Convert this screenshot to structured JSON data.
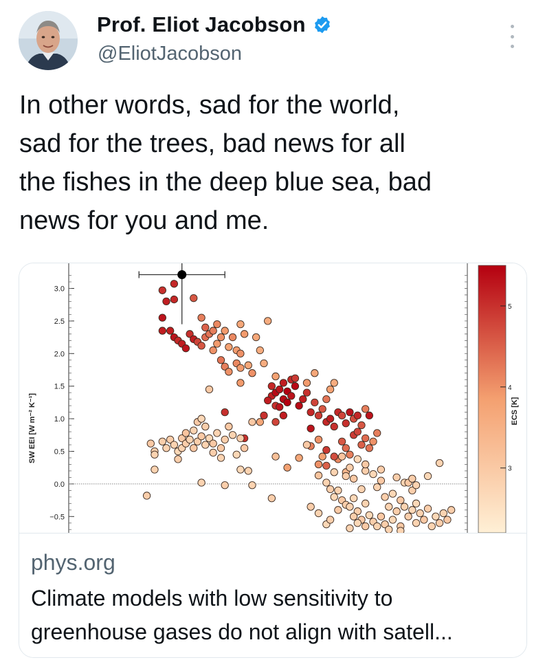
{
  "author": {
    "name": "Prof. Eliot Jacobson",
    "handle": "@EliotJacobson",
    "verified": true
  },
  "tweet": {
    "text": "In other words, sad for the world,\nsad for the trees, bad news for all\nthe fishes in the deep blue sea, bad\nnews for you and me."
  },
  "icons": {
    "verified_badge": "verified-badge-icon",
    "more": "more-options-icon"
  },
  "link_card": {
    "domain": "phys.org",
    "title": "Climate models with low sensitivity to\ngreenhouse gases do not align with satell..."
  },
  "chart_data": {
    "type": "scatter",
    "ylabel": "SW EEI [W m⁻² K⁻¹]",
    "y_ticks": [
      "3.0",
      "2.5",
      "2.0",
      "1.5",
      "1.0",
      "0.5",
      "0.0",
      "−0.5"
    ],
    "ylim": [
      -0.75,
      3.3
    ],
    "colorbar": {
      "label": "ECS [K]",
      "ticks": [
        "5",
        "4",
        "3"
      ],
      "range": [
        2.2,
        5.5
      ],
      "colors": [
        "#fff0d6",
        "#f4a070",
        "#b40010"
      ]
    },
    "reference_line_y": 0.0,
    "observation": {
      "x": 0.29,
      "y": 3.21,
      "xerr": 0.11,
      "ylow": 2.45
    },
    "points": [
      [
        0.27,
        3.07,
        5.1
      ],
      [
        0.24,
        2.97,
        5.0
      ],
      [
        0.25,
        2.8,
        5.2
      ],
      [
        0.27,
        2.83,
        5.1
      ],
      [
        0.24,
        2.55,
        5.3
      ],
      [
        0.24,
        2.35,
        5.2
      ],
      [
        0.32,
        2.85,
        4.6
      ],
      [
        0.26,
        2.35,
        5.2
      ],
      [
        0.27,
        2.25,
        5.3
      ],
      [
        0.28,
        2.2,
        5.1
      ],
      [
        0.29,
        2.15,
        5.2
      ],
      [
        0.3,
        2.08,
        5.3
      ],
      [
        0.31,
        2.3,
        5.0
      ],
      [
        0.32,
        2.22,
        5.2
      ],
      [
        0.33,
        2.18,
        4.8
      ],
      [
        0.34,
        2.12,
        4.6
      ],
      [
        0.35,
        2.25,
        4.4
      ],
      [
        0.36,
        2.3,
        4.3
      ],
      [
        0.37,
        2.35,
        4.2
      ],
      [
        0.38,
        2.45,
        4.1
      ],
      [
        0.35,
        2.4,
        4.5
      ],
      [
        0.34,
        2.55,
        4.2
      ],
      [
        0.37,
        2.05,
        4.0
      ],
      [
        0.38,
        2.15,
        3.9
      ],
      [
        0.39,
        2.25,
        4.0
      ],
      [
        0.4,
        2.35,
        3.9
      ],
      [
        0.41,
        2.1,
        3.8
      ],
      [
        0.42,
        2.25,
        4.1
      ],
      [
        0.43,
        2.05,
        3.9
      ],
      [
        0.44,
        2.0,
        4.0
      ],
      [
        0.45,
        2.3,
        3.9
      ],
      [
        0.39,
        1.9,
        4.3
      ],
      [
        0.4,
        1.8,
        4.2
      ],
      [
        0.41,
        1.72,
        4.0
      ],
      [
        0.43,
        1.85,
        4.1
      ],
      [
        0.44,
        1.78,
        3.9
      ],
      [
        0.46,
        1.82,
        3.7
      ],
      [
        0.44,
        2.45,
        3.7
      ],
      [
        0.48,
        2.25,
        3.7
      ],
      [
        0.49,
        2.05,
        3.6
      ],
      [
        0.51,
        2.5,
        3.6
      ],
      [
        0.53,
        1.65,
        3.8
      ],
      [
        0.44,
        1.55,
        3.9
      ],
      [
        0.47,
        1.7,
        4.0
      ],
      [
        0.5,
        1.85,
        3.6
      ],
      [
        0.52,
        1.35,
        5.2
      ],
      [
        0.53,
        1.4,
        5.4
      ],
      [
        0.54,
        1.45,
        5.3
      ],
      [
        0.55,
        1.3,
        5.4
      ],
      [
        0.56,
        1.42,
        5.5
      ],
      [
        0.57,
        1.35,
        5.3
      ],
      [
        0.58,
        1.5,
        5.4
      ],
      [
        0.56,
        1.25,
        5.5
      ],
      [
        0.55,
        1.55,
        5.2
      ],
      [
        0.57,
        1.6,
        5.1
      ],
      [
        0.53,
        1.2,
        5.0
      ],
      [
        0.54,
        1.18,
        5.3
      ],
      [
        0.59,
        1.2,
        5.4
      ],
      [
        0.6,
        1.3,
        5.2
      ],
      [
        0.61,
        1.4,
        5.0
      ],
      [
        0.58,
        1.62,
        4.9
      ],
      [
        0.52,
        1.5,
        5.1
      ],
      [
        0.51,
        1.28,
        5.2
      ],
      [
        0.5,
        1.05,
        5.0
      ],
      [
        0.53,
        0.95,
        4.8
      ],
      [
        0.55,
        1.05,
        5.2
      ],
      [
        0.62,
        1.1,
        5.1
      ],
      [
        0.63,
        1.25,
        4.8
      ],
      [
        0.64,
        1.05,
        4.9
      ],
      [
        0.65,
        1.15,
        4.6
      ],
      [
        0.66,
        1.3,
        4.3
      ],
      [
        0.67,
        1.45,
        3.8
      ],
      [
        0.68,
        1.55,
        3.6
      ],
      [
        0.61,
        1.55,
        3.9
      ],
      [
        0.63,
        1.7,
        3.7
      ],
      [
        0.66,
        0.95,
        5.1
      ],
      [
        0.67,
        1.0,
        5.2
      ],
      [
        0.68,
        0.88,
        5.0
      ],
      [
        0.69,
        1.1,
        5.1
      ],
      [
        0.7,
        1.05,
        4.8
      ],
      [
        0.71,
        0.93,
        5.0
      ],
      [
        0.72,
        1.1,
        5.3
      ],
      [
        0.73,
        1.0,
        4.7
      ],
      [
        0.74,
        1.05,
        5.1
      ],
      [
        0.75,
        0.9,
        4.6
      ],
      [
        0.76,
        1.15,
        4.2
      ],
      [
        0.77,
        1.05,
        5.3
      ],
      [
        0.73,
        0.75,
        4.9
      ],
      [
        0.74,
        0.8,
        4.8
      ],
      [
        0.75,
        0.6,
        4.5
      ],
      [
        0.76,
        0.7,
        4.4
      ],
      [
        0.77,
        0.55,
        4.3
      ],
      [
        0.78,
        0.65,
        4.0
      ],
      [
        0.79,
        0.78,
        4.2
      ],
      [
        0.7,
        0.65,
        4.6
      ],
      [
        0.71,
        0.55,
        4.4
      ],
      [
        0.72,
        0.45,
        4.2
      ],
      [
        0.69,
        0.38,
        4.1
      ],
      [
        0.64,
        0.3,
        4.0
      ],
      [
        0.65,
        0.42,
        3.8
      ],
      [
        0.62,
        0.58,
        4.2
      ],
      [
        0.64,
        0.68,
        4.0
      ],
      [
        0.66,
        0.28,
        4.5
      ],
      [
        0.66,
        0.52,
        4.9
      ],
      [
        0.68,
        0.42,
        4.7
      ],
      [
        0.71,
        0.18,
        3.4
      ],
      [
        0.59,
        0.4,
        3.7
      ],
      [
        0.56,
        0.25,
        3.8
      ],
      [
        0.53,
        0.42,
        3.2
      ],
      [
        0.49,
        0.95,
        3.7
      ],
      [
        0.45,
        0.7,
        5.0
      ],
      [
        0.4,
        1.1,
        5.0
      ],
      [
        0.62,
        0.85,
        5.3
      ],
      [
        0.21,
        0.62,
        3.0
      ],
      [
        0.22,
        0.5,
        2.9
      ],
      [
        0.22,
        0.45,
        2.8
      ],
      [
        0.24,
        0.65,
        2.9
      ],
      [
        0.25,
        0.55,
        2.8
      ],
      [
        0.26,
        0.68,
        2.9
      ],
      [
        0.27,
        0.6,
        2.8
      ],
      [
        0.28,
        0.5,
        2.7
      ],
      [
        0.28,
        0.38,
        2.9
      ],
      [
        0.29,
        0.55,
        2.8
      ],
      [
        0.29,
        0.7,
        3.0
      ],
      [
        0.3,
        0.62,
        2.9
      ],
      [
        0.3,
        0.78,
        3.1
      ],
      [
        0.31,
        0.68,
        2.8
      ],
      [
        0.32,
        0.55,
        3.0
      ],
      [
        0.33,
        0.65,
        2.9
      ],
      [
        0.34,
        0.73,
        3.0
      ],
      [
        0.35,
        0.6,
        2.8
      ],
      [
        0.36,
        0.7,
        2.7
      ],
      [
        0.37,
        0.62,
        3.0
      ],
      [
        0.37,
        0.48,
        2.9
      ],
      [
        0.38,
        0.78,
        2.8
      ],
      [
        0.39,
        0.55,
        3.0
      ],
      [
        0.39,
        0.4,
        2.8
      ],
      [
        0.4,
        0.68,
        2.9
      ],
      [
        0.41,
        0.88,
        3.0
      ],
      [
        0.42,
        0.75,
        2.8
      ],
      [
        0.43,
        0.45,
        2.7
      ],
      [
        0.44,
        0.7,
        2.9
      ],
      [
        0.45,
        0.55,
        3.0
      ],
      [
        0.46,
        0.2,
        2.8
      ],
      [
        0.47,
        0.95,
        3.0
      ],
      [
        0.33,
        0.95,
        3.0
      ],
      [
        0.32,
        0.82,
        2.8
      ],
      [
        0.35,
        0.88,
        2.9
      ],
      [
        0.34,
        1.0,
        2.7
      ],
      [
        0.36,
        1.45,
        3.0
      ],
      [
        0.22,
        0.22,
        2.8
      ],
      [
        0.2,
        -0.18,
        2.9
      ],
      [
        0.34,
        0.02,
        2.8
      ],
      [
        0.4,
        -0.02,
        2.9
      ],
      [
        0.44,
        0.22,
        2.7
      ],
      [
        0.47,
        -0.02,
        2.8
      ],
      [
        0.52,
        -0.22,
        2.9
      ],
      [
        0.61,
        0.6,
        3.0
      ],
      [
        0.64,
        0.13,
        3.1
      ],
      [
        0.66,
        0.02,
        2.8
      ],
      [
        0.67,
        -0.08,
        2.9
      ],
      [
        0.68,
        -0.2,
        2.7
      ],
      [
        0.69,
        -0.1,
        2.8
      ],
      [
        0.7,
        -0.25,
        3.0
      ],
      [
        0.71,
        -0.32,
        2.9
      ],
      [
        0.72,
        -0.35,
        2.8
      ],
      [
        0.73,
        -0.22,
        2.7
      ],
      [
        0.74,
        -0.42,
        2.9
      ],
      [
        0.75,
        -0.55,
        3.0
      ],
      [
        0.76,
        -0.3,
        2.8
      ],
      [
        0.77,
        -0.48,
        2.7
      ],
      [
        0.78,
        -0.58,
        2.9
      ],
      [
        0.79,
        -0.65,
        2.8
      ],
      [
        0.8,
        -0.5,
        3.0
      ],
      [
        0.81,
        -0.62,
        2.9
      ],
      [
        0.82,
        -0.7,
        2.8
      ],
      [
        0.83,
        -0.55,
        2.7
      ],
      [
        0.84,
        -0.42,
        2.9
      ],
      [
        0.85,
        -0.65,
        3.0
      ],
      [
        0.86,
        -0.35,
        2.8
      ],
      [
        0.87,
        -0.5,
        2.9
      ],
      [
        0.88,
        -0.4,
        2.7
      ],
      [
        0.89,
        -0.6,
        2.8
      ],
      [
        0.71,
        0.12,
        2.9
      ],
      [
        0.73,
        0.08,
        3.0
      ],
      [
        0.75,
        -0.08,
        2.8
      ],
      [
        0.76,
        0.2,
        2.9
      ],
      [
        0.78,
        0.15,
        2.7
      ],
      [
        0.79,
        -0.05,
        2.8
      ],
      [
        0.8,
        0.05,
        3.0
      ],
      [
        0.81,
        -0.2,
        2.9
      ],
      [
        0.82,
        -0.35,
        2.8
      ],
      [
        0.83,
        -0.15,
        2.7
      ],
      [
        0.84,
        0.1,
        2.9
      ],
      [
        0.85,
        -0.25,
        3.0
      ],
      [
        0.86,
        0.02,
        2.8
      ],
      [
        0.88,
        -0.1,
        2.9
      ],
      [
        0.89,
        -0.3,
        2.7
      ],
      [
        0.9,
        -0.45,
        2.8
      ],
      [
        0.91,
        -0.55,
        3.0
      ],
      [
        0.92,
        -0.38,
        2.9
      ],
      [
        0.93,
        -0.65,
        2.8
      ],
      [
        0.94,
        -0.5,
        2.7
      ],
      [
        0.95,
        -0.6,
        2.9
      ],
      [
        0.96,
        -0.45,
        2.8
      ],
      [
        0.97,
        -0.55,
        3.0
      ],
      [
        0.98,
        -0.4,
        2.9
      ],
      [
        0.87,
        0.02,
        3.0
      ],
      [
        0.88,
        0.08,
        2.9
      ],
      [
        0.89,
        -0.02,
        2.8
      ],
      [
        0.92,
        0.12,
        2.7
      ],
      [
        0.95,
        0.32,
        2.8
      ],
      [
        0.8,
        0.22,
        2.9
      ],
      [
        0.76,
        0.3,
        3.0
      ],
      [
        0.74,
        0.38,
        2.7
      ],
      [
        0.72,
        0.25,
        2.9
      ],
      [
        0.7,
        0.42,
        3.1
      ],
      [
        0.68,
        0.18,
        2.8
      ],
      [
        0.62,
        -0.35,
        2.9
      ],
      [
        0.64,
        -0.45,
        2.8
      ],
      [
        0.66,
        -0.62,
        2.7
      ],
      [
        0.67,
        -0.55,
        2.9
      ],
      [
        0.69,
        -0.4,
        3.0
      ],
      [
        0.72,
        -0.68,
        2.8
      ],
      [
        0.73,
        -0.5,
        2.9
      ],
      [
        0.74,
        -0.6,
        2.7
      ],
      [
        0.76,
        -0.65,
        3.0
      ],
      [
        0.85,
        -0.72,
        2.8
      ]
    ]
  }
}
